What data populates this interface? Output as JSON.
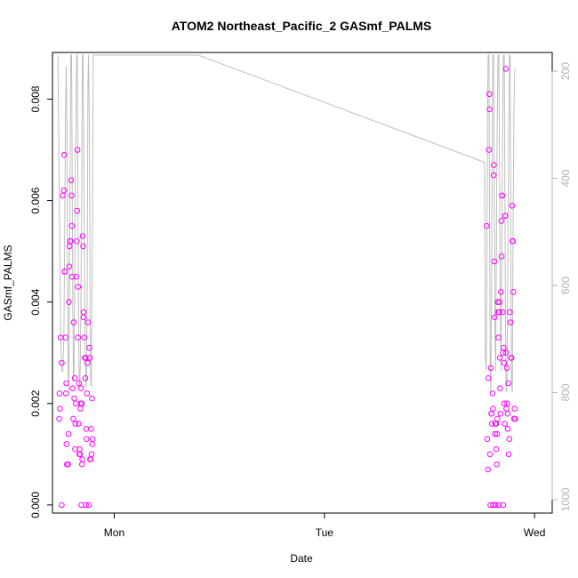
{
  "chart_data": {
    "type": "scatter",
    "title": "ATOM2 Northeast_Pacific_2 GASmf_PALMS",
    "xlabel": "Date",
    "ylabel": "GASmf_PALMS",
    "x_ticks": [
      "Mon",
      "Tue",
      "Wed"
    ],
    "x_range_days": [
      -0.294,
      2.084
    ],
    "ylim": [
      -0.00016,
      0.00892
    ],
    "y_ticks": [
      "0.000",
      "0.002",
      "0.004",
      "0.006",
      "0.008"
    ],
    "y2_ticks": [
      "200",
      "400",
      "600",
      "800",
      "1000"
    ],
    "y2_range": [
      1025,
      165
    ],
    "colors": {
      "points": "#ff00ff",
      "line": "#bebebe"
    },
    "series": [
      {
        "type": "scatter",
        "points": [
          [
            -0.255,
            0.0033
          ],
          [
            -0.25,
            0.0028
          ],
          [
            -0.258,
            0.0019
          ],
          [
            -0.26,
            0.0022
          ],
          [
            -0.262,
            0.0017
          ],
          [
            -0.25,
            0
          ],
          [
            -0.245,
            0.0061
          ],
          [
            -0.24,
            0.0062
          ],
          [
            -0.238,
            0.0069
          ],
          [
            -0.236,
            0.0046
          ],
          [
            -0.235,
            0.0046
          ],
          [
            -0.232,
            0.0033
          ],
          [
            -0.23,
            0.0022
          ],
          [
            -0.228,
            0.0024
          ],
          [
            -0.227,
            0.0012
          ],
          [
            -0.225,
            0.0008
          ],
          [
            -0.22,
            0.0008
          ],
          [
            -0.218,
            0.0014
          ],
          [
            -0.216,
            0.004
          ],
          [
            -0.214,
            0.0047
          ],
          [
            -0.213,
            0.0051
          ],
          [
            -0.21,
            0.0052
          ],
          [
            -0.208,
            0.0052
          ],
          [
            -0.205,
            0.0064
          ],
          [
            -0.203,
            0.0061
          ],
          [
            -0.202,
            0.0055
          ],
          [
            -0.2,
            0.0045
          ],
          [
            -0.198,
            0.0023
          ],
          [
            -0.195,
            0.0017
          ],
          [
            -0.193,
            0.0036
          ],
          [
            -0.19,
            0.0021
          ],
          [
            -0.188,
            0.0025
          ],
          [
            -0.186,
            0.0011
          ],
          [
            -0.185,
            0.0016
          ],
          [
            -0.183,
            0.002
          ],
          [
            -0.18,
            0.0045
          ],
          [
            -0.178,
            0.0052
          ],
          [
            -0.177,
            0.0058
          ],
          [
            -0.175,
            0.007
          ],
          [
            -0.173,
            0.0033
          ],
          [
            -0.172,
            0.0043
          ],
          [
            -0.17,
            0.0016
          ],
          [
            -0.168,
            0.0024
          ],
          [
            -0.166,
            0.001
          ],
          [
            -0.165,
            0.0011
          ],
          [
            -0.163,
            0.001
          ],
          [
            -0.161,
            0.0019
          ],
          [
            -0.16,
            0.002
          ],
          [
            -0.158,
            0.0023
          ],
          [
            -0.157,
            0
          ],
          [
            -0.155,
            0.002
          ],
          [
            -0.153,
            0.0008
          ],
          [
            -0.152,
            0.0009
          ],
          [
            -0.15,
            0.0053
          ],
          [
            -0.148,
            0.0051
          ],
          [
            -0.146,
            0.0037
          ],
          [
            -0.145,
            0.0038
          ],
          [
            -0.143,
            0.0033
          ],
          [
            -0.14,
            0.0029
          ],
          [
            -0.138,
            0.0025
          ],
          [
            -0.136,
            0.0029
          ],
          [
            -0.135,
            0
          ],
          [
            -0.133,
            0.0015
          ],
          [
            -0.132,
            0.0013
          ],
          [
            -0.13,
            0.0022
          ],
          [
            -0.128,
            0.0028
          ],
          [
            -0.125,
            0.0036
          ],
          [
            -0.12,
            0
          ],
          [
            -0.118,
            0.0031
          ],
          [
            -0.116,
            0.0029
          ],
          [
            -0.115,
            0.0009
          ],
          [
            -0.113,
            0.0009
          ],
          [
            -0.11,
            0.0015
          ],
          [
            -0.108,
            0.001
          ],
          [
            -0.106,
            0.0021
          ],
          [
            -0.105,
            0.0012
          ],
          [
            -0.103,
            0.0013
          ],
          [
            1.772,
            0.0055
          ],
          [
            1.775,
            0.0013
          ],
          [
            1.778,
            0.0007
          ],
          [
            1.78,
            0.0025
          ],
          [
            1.783,
            0.007
          ],
          [
            1.785,
            0.0081
          ],
          [
            1.786,
            0.0078
          ],
          [
            1.788,
            0.001
          ],
          [
            1.79,
            0
          ],
          [
            1.792,
            0.0027
          ],
          [
            1.794,
            0.0018
          ],
          [
            1.795,
            0.0018
          ],
          [
            1.797,
            0.0016
          ],
          [
            1.8,
            0.0022
          ],
          [
            1.802,
            0.0019
          ],
          [
            1.803,
            0
          ],
          [
            1.805,
            0.0065
          ],
          [
            1.806,
            0.0067
          ],
          [
            1.808,
            0.0048
          ],
          [
            1.81,
            0.0037
          ],
          [
            1.812,
            0.0014
          ],
          [
            1.813,
            0.0016
          ],
          [
            1.815,
            0
          ],
          [
            1.817,
            0.0016
          ],
          [
            1.818,
            0.0011
          ],
          [
            1.82,
            0.0008
          ],
          [
            1.822,
            0.0014
          ],
          [
            1.823,
            0.0017
          ],
          [
            1.825,
            0.004
          ],
          [
            1.827,
            0.0038
          ],
          [
            1.828,
            0.0033
          ],
          [
            1.83,
            0
          ],
          [
            1.832,
            0.0038
          ],
          [
            1.833,
            0.004
          ],
          [
            1.835,
            0.0029
          ],
          [
            1.836,
            0.0023
          ],
          [
            1.838,
            0.0018
          ],
          [
            1.84,
            0.0042
          ],
          [
            1.842,
            0.0056
          ],
          [
            1.843,
            0.0049
          ],
          [
            1.845,
            0.0061
          ],
          [
            1.846,
            0.0061
          ],
          [
            1.848,
            0.0038
          ],
          [
            1.85,
            0.003
          ],
          [
            1.851,
            0
          ],
          [
            1.853,
            0.0031
          ],
          [
            1.855,
            0.0028
          ],
          [
            1.856,
            0.002
          ],
          [
            1.858,
            0.0016
          ],
          [
            1.86,
            0.0057
          ],
          [
            1.861,
            0.0057
          ],
          [
            1.863,
            0.0086
          ],
          [
            1.865,
            0.003
          ],
          [
            1.866,
            0.0019
          ],
          [
            1.868,
            0.0027
          ],
          [
            1.87,
            0.002
          ],
          [
            1.872,
            0.0018
          ],
          [
            1.873,
            0.0015
          ],
          [
            1.875,
            0.0024
          ],
          [
            1.877,
            0.001
          ],
          [
            1.88,
            0.0013
          ],
          [
            1.882,
            0.0038
          ],
          [
            1.885,
            0.0036
          ],
          [
            1.888,
            0.0029
          ],
          [
            1.89,
            0.0029
          ],
          [
            1.893,
            0.0059
          ],
          [
            1.895,
            0.0052
          ],
          [
            1.897,
            0.0052
          ],
          [
            1.899,
            0.0042
          ],
          [
            1.902,
            0.0017
          ],
          [
            1.905,
            0.0019
          ],
          [
            1.908,
            0.0017
          ]
        ]
      },
      {
        "type": "line",
        "axis": "right",
        "points": [
          [
            -0.268,
            170
          ],
          [
            -0.262,
            420
          ],
          [
            -0.255,
            700
          ],
          [
            -0.25,
            760
          ],
          [
            -0.245,
            760
          ],
          [
            -0.24,
            700
          ],
          [
            -0.236,
            520
          ],
          [
            -0.232,
            260
          ],
          [
            -0.228,
            190
          ],
          [
            -0.225,
            320
          ],
          [
            -0.222,
            560
          ],
          [
            -0.219,
            760
          ],
          [
            -0.216,
            800
          ],
          [
            -0.213,
            600
          ],
          [
            -0.21,
            380
          ],
          [
            -0.207,
            170
          ],
          [
            -0.203,
            170
          ],
          [
            -0.2,
            400
          ],
          [
            -0.197,
            640
          ],
          [
            -0.194,
            780
          ],
          [
            -0.191,
            760
          ],
          [
            -0.188,
            560
          ],
          [
            -0.185,
            380
          ],
          [
            -0.182,
            270
          ],
          [
            -0.179,
            170
          ],
          [
            -0.176,
            170
          ],
          [
            -0.173,
            400
          ],
          [
            -0.17,
            640
          ],
          [
            -0.167,
            780
          ],
          [
            -0.164,
            790
          ],
          [
            -0.161,
            740
          ],
          [
            -0.158,
            600
          ],
          [
            -0.155,
            420
          ],
          [
            -0.152,
            170
          ],
          [
            -0.149,
            170
          ],
          [
            -0.146,
            300
          ],
          [
            -0.143,
            500
          ],
          [
            -0.14,
            680
          ],
          [
            -0.137,
            760
          ],
          [
            -0.134,
            790
          ],
          [
            -0.131,
            760
          ],
          [
            -0.128,
            560
          ],
          [
            -0.125,
            220
          ],
          [
            -0.122,
            170
          ],
          [
            -0.118,
            320
          ],
          [
            -0.115,
            650
          ],
          [
            -0.112,
            780
          ],
          [
            -0.109,
            790
          ],
          [
            -0.106,
            620
          ],
          [
            -0.103,
            450
          ],
          [
            -0.1,
            170
          ],
          [
            0.4,
            170
          ],
          [
            1.762,
            370
          ],
          [
            1.766,
            730
          ],
          [
            1.77,
            760
          ],
          [
            1.773,
            600
          ],
          [
            1.776,
            300
          ],
          [
            1.779,
            170
          ],
          [
            1.783,
            170
          ],
          [
            1.786,
            500
          ],
          [
            1.789,
            760
          ],
          [
            1.792,
            800
          ],
          [
            1.795,
            620
          ],
          [
            1.798,
            380
          ],
          [
            1.801,
            170
          ],
          [
            1.805,
            170
          ],
          [
            1.808,
            420
          ],
          [
            1.812,
            700
          ],
          [
            1.815,
            760
          ],
          [
            1.818,
            560
          ],
          [
            1.822,
            300
          ],
          [
            1.826,
            170
          ],
          [
            1.83,
            170
          ],
          [
            1.833,
            380
          ],
          [
            1.837,
            620
          ],
          [
            1.84,
            760
          ],
          [
            1.843,
            640
          ],
          [
            1.846,
            420
          ],
          [
            1.849,
            250
          ],
          [
            1.852,
            170
          ],
          [
            1.856,
            170
          ],
          [
            1.859,
            450
          ],
          [
            1.862,
            680
          ],
          [
            1.865,
            800
          ],
          [
            1.869,
            770
          ],
          [
            1.872,
            610
          ],
          [
            1.876,
            400
          ],
          [
            1.88,
            170
          ],
          [
            1.884,
            170
          ],
          [
            1.887,
            500
          ],
          [
            1.89,
            780
          ],
          [
            1.894,
            800
          ],
          [
            1.898,
            500
          ],
          [
            1.902,
            260
          ],
          [
            1.906,
            195
          ]
        ]
      }
    ]
  }
}
